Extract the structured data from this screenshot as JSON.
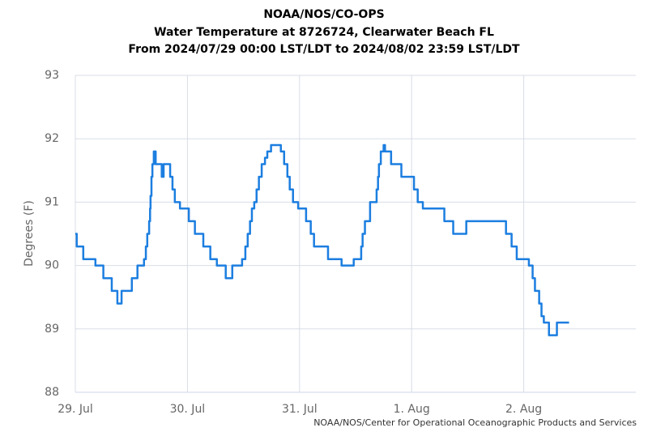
{
  "chart_data": {
    "type": "line",
    "title": [
      "NOAA/NOS/CO-OPS",
      "Water Temperature at 8726724, Clearwater Beach FL",
      "From 2024/07/29 00:00 LST/LDT to 2024/08/02 23:59 LST/LDT"
    ],
    "y_label": "Degrees (F)",
    "credit": "NOAA/NOS/Center for Operational Oceanographic Products and Services",
    "xlim": [
      0,
      120
    ],
    "xticks": [
      {
        "value": 0,
        "label": "29. Jul"
      },
      {
        "value": 24,
        "label": "30. Jul"
      },
      {
        "value": 48,
        "label": "31. Jul"
      },
      {
        "value": 72,
        "label": "1. Aug"
      },
      {
        "value": 96,
        "label": "2. Aug"
      }
    ],
    "ylim": [
      88,
      93
    ],
    "yticks": [
      88,
      89,
      90,
      91,
      92,
      93
    ],
    "grid": true,
    "step": true,
    "series": [
      {
        "name": "Water Temperature",
        "color": "#1c7ee0",
        "x": [
          0,
          0.3,
          1.7,
          4.3,
          6,
          7.8,
          9,
          9.9,
          12.1,
          13.3,
          14.7,
          15.1,
          15.4,
          15.8,
          16,
          16.1,
          16.3,
          16.5,
          16.8,
          17.2,
          18.5,
          18.9,
          20.3,
          20.8,
          21.3,
          22.4,
          24.3,
          25.6,
          27.4,
          28.9,
          30.3,
          32.2,
          33.6,
          35.7,
          36.4,
          36.9,
          37.4,
          37.8,
          38.3,
          38.8,
          39.3,
          39.9,
          40.6,
          41.1,
          41.9,
          44,
          44.7,
          45.4,
          45.9,
          46.6,
          47.7,
          49.4,
          50.4,
          51.1,
          54.1,
          57,
          59.6,
          61.2,
          61.5,
          62,
          63.1,
          64.5,
          64.8,
          65,
          65.4,
          66,
          66.3,
          67.6,
          69.8,
          72.5,
          73.3,
          74.4,
          79,
          80.9,
          83.7,
          92.2,
          93.4,
          94.5,
          97.1,
          97.9,
          98.4,
          99.3,
          99.8,
          100.3,
          101.4,
          103.1,
          105.7
        ],
        "values": [
          90.5,
          90.3,
          90.1,
          90.0,
          89.8,
          89.6,
          89.4,
          89.6,
          89.8,
          90.0,
          90.1,
          90.3,
          90.5,
          90.7,
          90.9,
          91.1,
          91.4,
          91.6,
          91.8,
          91.6,
          91.4,
          91.6,
          91.4,
          91.2,
          91.0,
          90.9,
          90.7,
          90.5,
          90.3,
          90.1,
          90.0,
          89.8,
          90.0,
          90.1,
          90.3,
          90.5,
          90.7,
          90.9,
          91.0,
          91.2,
          91.4,
          91.6,
          91.7,
          91.8,
          91.9,
          91.8,
          91.6,
          91.4,
          91.2,
          91.0,
          90.9,
          90.7,
          90.5,
          90.3,
          90.1,
          90.0,
          90.1,
          90.3,
          90.5,
          90.7,
          91.0,
          91.2,
          91.4,
          91.6,
          91.8,
          91.9,
          91.8,
          91.6,
          91.4,
          91.2,
          91.0,
          90.9,
          90.7,
          90.5,
          90.7,
          90.5,
          90.3,
          90.1,
          90.0,
          89.8,
          89.6,
          89.4,
          89.2,
          89.1,
          88.9,
          89.1,
          89.1
        ]
      }
    ]
  }
}
